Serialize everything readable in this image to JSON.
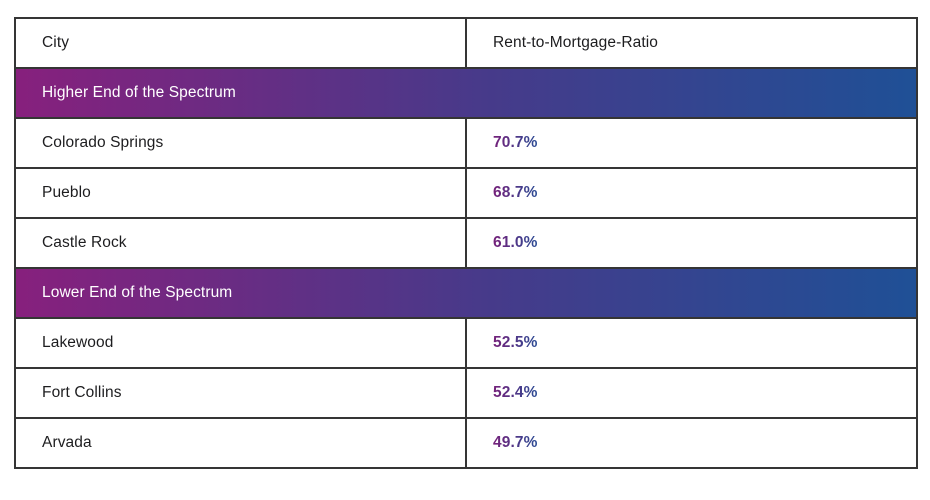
{
  "table": {
    "header": {
      "city": "City",
      "ratio": "Rent-to-Mortgage-Ratio"
    },
    "sections": [
      {
        "label": "Higher End of the Spectrum",
        "rows": [
          {
            "city": "Colorado Springs",
            "ratio": "70.7%"
          },
          {
            "city": "Pueblo",
            "ratio": "68.7%"
          },
          {
            "city": "Castle Rock",
            "ratio": "61.0%"
          }
        ]
      },
      {
        "label": "Lower End of the Spectrum",
        "rows": [
          {
            "city": "Lakewood",
            "ratio": "52.5%"
          },
          {
            "city": "Fort Collins",
            "ratio": "52.4%"
          },
          {
            "city": "Arvada",
            "ratio": "49.7%"
          }
        ]
      }
    ]
  },
  "colors": {
    "band_gradient_start": "#87207D",
    "band_gradient_mid": "#473A8A",
    "band_gradient_end": "#1F5096",
    "value_gradient_start": "#76217A",
    "value_gradient_end": "#2B4B94",
    "border": "#353535",
    "text": "#1D1D1F",
    "background": "#FFFFFF"
  },
  "chart_data": {
    "type": "table",
    "title": "",
    "columns": [
      "City",
      "Rent-to-Mortgage-Ratio"
    ],
    "sections": [
      {
        "header": "Higher End of the Spectrum",
        "rows": [
          [
            "Colorado Springs",
            "70.7%"
          ],
          [
            "Pueblo",
            "68.7%"
          ],
          [
            "Castle Rock",
            "61.0%"
          ]
        ]
      },
      {
        "header": "Lower End of the Spectrum",
        "rows": [
          [
            "Lakewood",
            "52.5%"
          ],
          [
            "Fort Collins",
            "52.4%"
          ],
          [
            "Arvada",
            "49.7%"
          ]
        ]
      }
    ],
    "values_numeric_percent": [
      70.7,
      68.7,
      61.0,
      52.5,
      52.4,
      49.7
    ]
  }
}
